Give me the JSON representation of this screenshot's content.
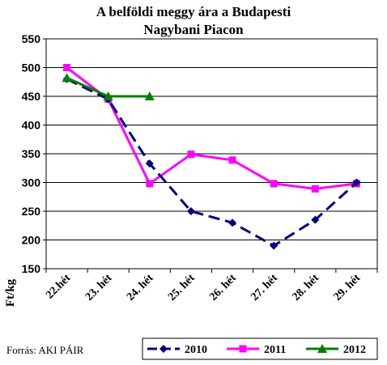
{
  "chart_data": {
    "type": "line",
    "title_lines": [
      "A belföldi meggy ára a Budapesti",
      "Nagybani Piacon"
    ],
    "ylabel": "Ft/kg",
    "xlabel": "",
    "categories": [
      "22.hét",
      "23. hét",
      "24. hét",
      "25. hét",
      "26. hét",
      "27. hét",
      "28. hét",
      "29. hét"
    ],
    "ylim": [
      150,
      550
    ],
    "yticks": [
      150,
      200,
      250,
      300,
      350,
      400,
      450,
      500,
      550
    ],
    "grid": true,
    "legend": "bottom-right",
    "series": [
      {
        "name": "2010",
        "values": [
          480,
          445,
          333,
          250,
          230,
          190,
          235,
          300
        ],
        "color": "#000080",
        "marker": "diamond",
        "dash": "dashed"
      },
      {
        "name": "2011",
        "values": [
          500,
          445,
          298,
          349,
          339,
          298,
          289,
          298
        ],
        "color": "#ff00ff",
        "marker": "square",
        "dash": "solid"
      },
      {
        "name": "2012",
        "values": [
          482,
          450,
          450,
          null,
          null,
          null,
          null,
          null
        ],
        "color": "#008000",
        "marker": "triangle",
        "dash": "solid"
      }
    ]
  },
  "footer": {
    "source": "Forrás: AKI PÁIR"
  }
}
